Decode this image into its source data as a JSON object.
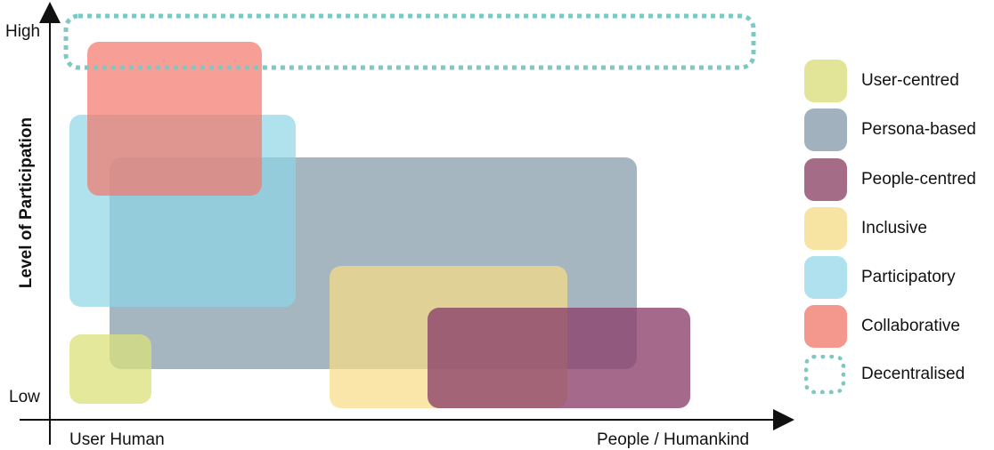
{
  "axes": {
    "y_label": "Level of Participation",
    "y_high": "High",
    "y_low": "Low",
    "x_left": "User Human",
    "x_right": "People / Humankind"
  },
  "regions": [
    {
      "name": "User-centred",
      "color": "#d9e07a"
    },
    {
      "name": "Persona-based",
      "color": "#7f97a6"
    },
    {
      "name": "People-centred",
      "color": "#8b3f6a"
    },
    {
      "name": "Inclusive",
      "color": "#f7dc87"
    },
    {
      "name": "Participatory",
      "color": "#8fd6e6"
    },
    {
      "name": "Collaborative",
      "color": "#f4766a"
    },
    {
      "name": "Decentralised",
      "color": "#7ec8c3",
      "style": "dotted-outline"
    }
  ],
  "legend": {
    "items": [
      {
        "label": "User-centred",
        "color": "#e2e597"
      },
      {
        "label": "Persona-based",
        "color": "#a1b2be"
      },
      {
        "label": "People-centred",
        "color": "#a56c88"
      },
      {
        "label": "Inclusive",
        "color": "#f8e4a2"
      },
      {
        "label": "Participatory",
        "color": "#afe1ee"
      },
      {
        "label": "Collaborative",
        "color": "#f4978c"
      },
      {
        "label": "Decentralised",
        "color": "#7ec8c3",
        "style": "dotted-outline"
      }
    ]
  }
}
